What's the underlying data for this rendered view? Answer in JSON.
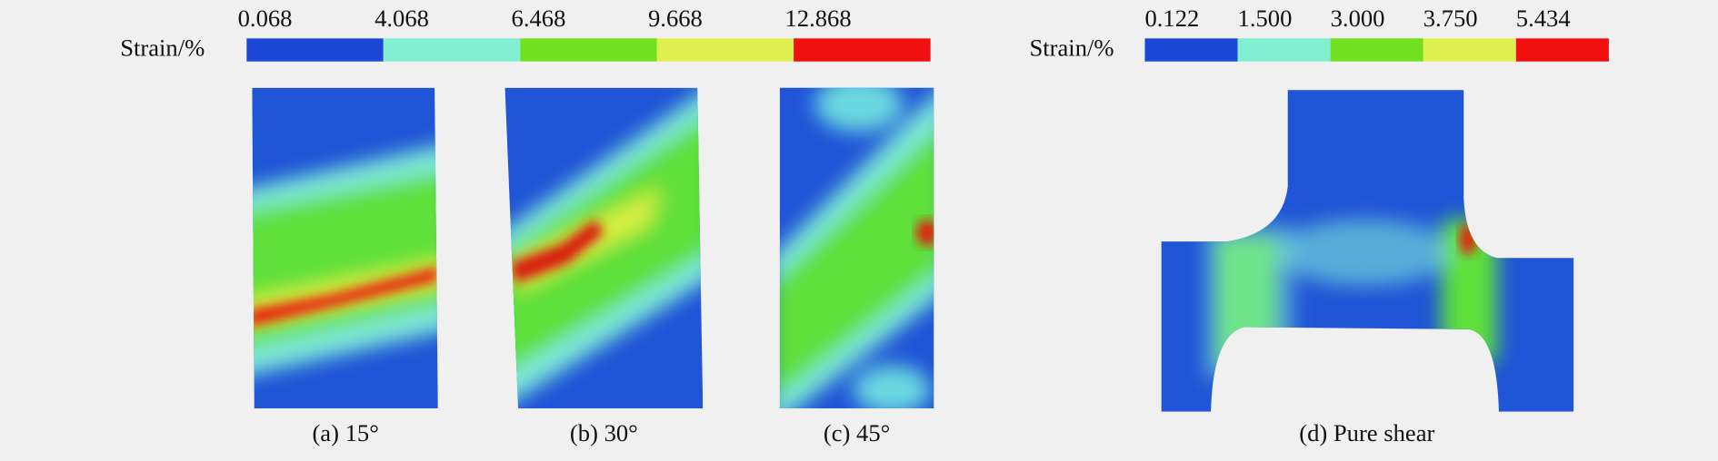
{
  "colorbars": [
    {
      "label": "Strain/%",
      "ticks": [
        "0.068",
        "4.068",
        "6.468",
        "9.668",
        "12.868"
      ]
    },
    {
      "label": "Strain/%",
      "ticks": [
        "0.122",
        "1.500",
        "3.000",
        "3.750",
        "5.434"
      ]
    }
  ],
  "panels": [
    {
      "caption": "(a) 15°"
    },
    {
      "caption": "(b) 30°"
    },
    {
      "caption": "(c) 45°"
    },
    {
      "caption": "(d) Pure shear"
    }
  ]
}
